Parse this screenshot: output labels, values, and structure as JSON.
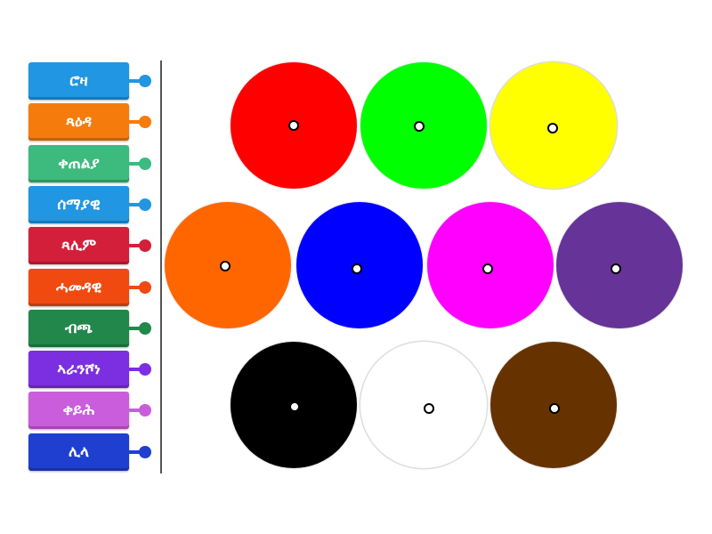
{
  "labels": [
    {
      "text": "ሮዛ",
      "color": "#2196e3"
    },
    {
      "text": "ጻዕዳ",
      "color": "#f57c0c"
    },
    {
      "text": "ቀጠልያ",
      "color": "#3dba7e"
    },
    {
      "text": "ሰማያዊ",
      "color": "#2196e3"
    },
    {
      "text": "ጻሊም",
      "color": "#d41f3a"
    },
    {
      "text": "ሓመዳዊ",
      "color": "#f04a10"
    },
    {
      "text": "ብጫ",
      "color": "#22874a"
    },
    {
      "text": "ኣራንሾነ",
      "color": "#7b2fe0"
    },
    {
      "text": "ቀይሕ",
      "color": "#c95ddb"
    },
    {
      "text": "ሊላ",
      "color": "#1e3fcf"
    }
  ],
  "targets": [
    {
      "color": "#ff0000"
    },
    {
      "color": "#00ff00"
    },
    {
      "color": "#ffff00"
    },
    {
      "color": "#ff6600"
    },
    {
      "color": "#0000ff"
    },
    {
      "color": "#ff00ff"
    },
    {
      "color": "#663399"
    },
    {
      "color": "#000000"
    },
    {
      "color": "#ffffff"
    },
    {
      "color": "#663300"
    }
  ]
}
